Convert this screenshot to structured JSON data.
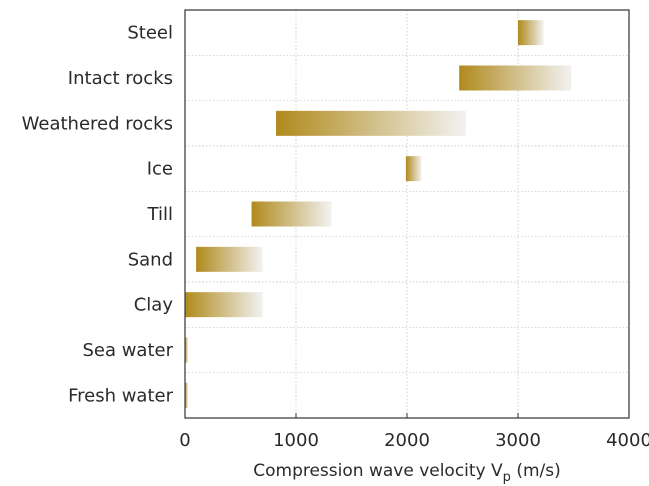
{
  "chart_data": {
    "type": "bar",
    "orientation": "horizontal",
    "categories": [
      "Steel",
      "Intact rocks",
      "Weathered rocks",
      "Ice",
      "Till",
      "Sand",
      "Clay",
      "Sea water",
      "Fresh water"
    ],
    "ranges": [
      {
        "name": "Steel",
        "min": 3000,
        "max": 3230
      },
      {
        "name": "Intact rocks",
        "min": 2470,
        "max": 3480
      },
      {
        "name": "Weathered rocks",
        "min": 820,
        "max": 2530
      },
      {
        "name": "Ice",
        "min": 1990,
        "max": 2130
      },
      {
        "name": "Till",
        "min": 600,
        "max": 1320
      },
      {
        "name": "Sand",
        "min": 100,
        "max": 700
      },
      {
        "name": "Clay",
        "min": 0,
        "max": 700
      },
      {
        "name": "Sea water",
        "min": 0,
        "max": 15
      },
      {
        "name": "Fresh water",
        "min": 0,
        "max": 15
      }
    ],
    "xticks": [
      0,
      1000,
      2000,
      3000,
      4000
    ],
    "xlim": [
      0,
      4000
    ],
    "xlabel_main": "Compression wave velocity V",
    "xlabel_sub": "p",
    "xlabel_unit": " (m/s)",
    "grid": true,
    "colors": {
      "bar_start": "#b08a1c",
      "bar_end": "#f2f2f2",
      "grid": "#bdbdbd",
      "axis": "#333333"
    }
  }
}
